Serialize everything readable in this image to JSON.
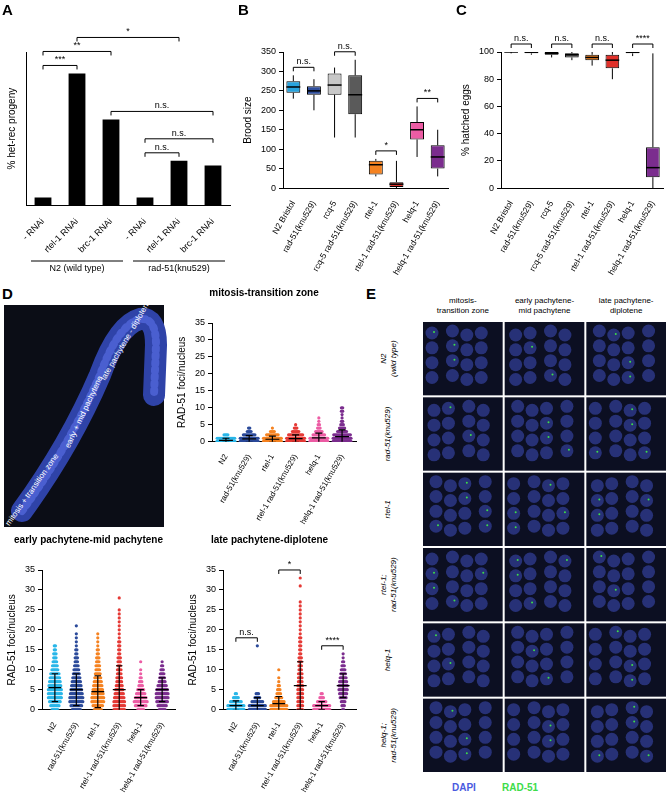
{
  "chart_data": [
    {
      "type": "bar",
      "title": "A",
      "categories": [
        "- RNAi",
        "rtel-1 RNAi",
        "brc-1 RNAi",
        "- RNAi",
        "rtel-1 RNAi",
        "brc-1 RNAi"
      ],
      "values": [
        0.05,
        0.86,
        0.56,
        0.05,
        0.29,
        0.26
      ],
      "color": "#000000",
      "ylabel": "% het-rec progeny",
      "ylim": [
        0,
        1
      ],
      "tick_labels": "x",
      "grid": false,
      "groups": [
        {
          "label": "N2 (wild type)",
          "from": 0,
          "to": 2
        },
        {
          "label": "rad-51(knu529)",
          "from": 3,
          "to": 5
        }
      ],
      "annotations": [
        {
          "label": "n.s.",
          "from": 3,
          "to": 4
        },
        {
          "label": "n.s.",
          "from": 3,
          "to": 5
        },
        {
          "label": "n.s.",
          "from": 2,
          "to": 5
        },
        {
          "label": "***",
          "from": 0,
          "to": 1
        },
        {
          "label": "**",
          "from": 0,
          "to": 2
        },
        {
          "label": "*",
          "from": 1,
          "to": 4
        }
      ]
    },
    {
      "type": "box",
      "title": "B",
      "categories": [
        "N2 Bristol",
        "rad-51(knu529)",
        "rcq-5",
        "rcq-5 rad-51(knu529)",
        "rtel-1",
        "rtel-1 rad-51(knu529)",
        "helq-1",
        "helq-1 rad-51(knu529)"
      ],
      "values": [
        [
          230,
          245,
          260,
          275,
          290
        ],
        [
          200,
          240,
          250,
          262,
          280
        ],
        [
          130,
          240,
          265,
          295,
          310
        ],
        [
          130,
          190,
          240,
          290,
          330
        ],
        [
          30,
          35,
          60,
          70,
          75
        ],
        [
          0,
          3,
          10,
          15,
          70
        ],
        [
          80,
          125,
          150,
          170,
          210
        ],
        [
          30,
          50,
          80,
          110,
          150
        ]
      ],
      "colors": [
        "#29a3dd",
        "#2e4d9b",
        "#c8c8c8",
        "#5a5a5a",
        "#f58220",
        "#e0302a",
        "#ec5ca4",
        "#7b2d8e"
      ],
      "ylabel": "Brood size",
      "ylim": [
        0,
        350
      ],
      "yticks": [
        0,
        50,
        100,
        150,
        200,
        250,
        300,
        350
      ],
      "grid": false,
      "annotations": [
        {
          "label": "n.s.",
          "from": 0,
          "to": 1
        },
        {
          "label": "n.s.",
          "from": 2,
          "to": 3
        },
        {
          "label": "*",
          "from": 4,
          "to": 5
        },
        {
          "label": "**",
          "from": 6,
          "to": 7
        }
      ]
    },
    {
      "type": "box",
      "title": "C",
      "categories": [
        "N2 Bristol",
        "rad-51(knu529)",
        "rcq-5",
        "rcq-5 rad-51(knu529)",
        "rtel-1",
        "rtel-1 rad-51(knu529)",
        "helq-1",
        "helq-1 rad-51(knu529)"
      ],
      "values": [
        [
          99,
          100,
          100,
          100,
          100
        ],
        [
          98,
          99,
          100,
          100,
          100
        ],
        [
          96,
          98,
          99,
          100,
          100
        ],
        [
          94,
          96,
          98,
          99,
          100
        ],
        [
          90,
          94,
          96,
          98,
          100
        ],
        [
          80,
          88,
          94,
          98,
          100
        ],
        [
          97,
          99,
          100,
          100,
          100
        ],
        [
          0,
          8,
          15,
          30,
          99
        ]
      ],
      "colors": [
        "#29a3dd",
        "#2e4d9b",
        "#c8c8c8",
        "#5a5a5a",
        "#f58220",
        "#e0302a",
        "#ec5ca4",
        "#7b2d8e"
      ],
      "ylabel": "% hatched eggs",
      "ylim": [
        0,
        100
      ],
      "yticks": [
        0,
        20,
        40,
        60,
        80,
        100
      ],
      "grid": false,
      "annotations": [
        {
          "label": "n.s.",
          "from": 0,
          "to": 1
        },
        {
          "label": "n.s.",
          "from": 2,
          "to": 3
        },
        {
          "label": "n.s.",
          "from": 4,
          "to": 5
        },
        {
          "label": "****",
          "from": 6,
          "to": 7
        }
      ]
    },
    {
      "type": "scatter",
      "title": "mitosis-transition zone",
      "categories": [
        "N2",
        "rad-51(knu529)",
        "rtel-1",
        "rtel-1 rad-51(knu529)",
        "helq-1",
        "helq-1 rad-51(knu529)"
      ],
      "colors": [
        "#29b6e8",
        "#2b4a9a",
        "#f58220",
        "#e53935",
        "#ec5ca4",
        "#7b2d8e"
      ],
      "counts": [
        [
          55,
          18,
          4
        ],
        [
          45,
          25,
          10,
          4,
          2
        ],
        [
          48,
          25,
          10,
          4,
          1
        ],
        [
          42,
          28,
          12,
          6,
          3,
          1
        ],
        [
          40,
          25,
          10,
          6,
          3,
          2,
          1,
          1
        ],
        [
          38,
          25,
          14,
          8,
          5,
          3,
          2,
          1,
          1,
          2,
          2
        ]
      ],
      "mean": [
        0.4,
        0.8,
        0.7,
        0.9,
        1.1,
        1.5
      ],
      "sd": [
        0.6,
        1.0,
        0.9,
        1.1,
        1.4,
        2.0
      ],
      "ylabel": "RAD-51 foci/nucleus",
      "ylim": [
        0,
        35
      ],
      "yticks": [
        0,
        5,
        10,
        15,
        20,
        25,
        30,
        35
      ],
      "grid": false
    },
    {
      "type": "scatter",
      "title": "early pachytene-mid pachytene",
      "categories": [
        "N2",
        "rad-51(knu529)",
        "rtel-1",
        "rtel-1 rad-51(knu529)",
        "helq-1",
        "helq-1 rad-51(knu529)"
      ],
      "colors": [
        "#29b6e8",
        "#2b4a9a",
        "#f58220",
        "#e53935",
        "#ec5ca4",
        "#7b2d8e"
      ],
      "counts": [
        [
          6,
          8,
          10,
          12,
          12,
          12,
          11,
          10,
          9,
          8,
          6,
          5,
          4,
          3,
          3,
          2,
          2
        ],
        [
          8,
          10,
          12,
          12,
          11,
          10,
          9,
          8,
          7,
          6,
          5,
          4,
          3,
          3,
          2,
          2,
          1,
          1,
          1,
          1,
          0,
          1
        ],
        [
          7,
          9,
          11,
          11,
          10,
          9,
          8,
          7,
          6,
          5,
          4,
          4,
          3,
          3,
          2,
          2,
          1,
          1,
          1,
          1
        ],
        [
          10,
          10,
          10,
          9,
          8,
          7,
          6,
          5,
          5,
          4,
          4,
          3,
          3,
          3,
          2,
          2,
          2,
          2,
          1,
          1,
          1,
          1,
          1,
          1,
          1,
          1,
          0,
          0,
          1
        ],
        [
          6,
          10,
          12,
          10,
          8,
          6,
          4,
          3,
          2,
          1,
          1,
          0,
          1
        ],
        [
          6,
          8,
          10,
          11,
          11,
          10,
          8,
          6,
          5,
          4,
          3,
          2,
          1
        ]
      ],
      "mean": [
        5.5,
        5,
        4.5,
        5,
        3,
        5
      ],
      "sd": [
        3.5,
        4,
        4,
        6,
        2,
        3
      ],
      "ylabel": "RAD-51 foci/nucleus",
      "ylim": [
        0,
        35
      ],
      "yticks": [
        0,
        5,
        10,
        15,
        20,
        25,
        30,
        35
      ],
      "grid": false
    },
    {
      "type": "scatter",
      "title": "late pachytene-diplotene",
      "categories": [
        "N2",
        "rad-51(knu529)",
        "rtel-1",
        "rtel-1 rad-51(knu529)",
        "helq-1",
        "helq-1 rad-51(knu529)"
      ],
      "colors": [
        "#29b6e8",
        "#2b4a9a",
        "#f58220",
        "#e53935",
        "#ec5ca4",
        "#7b2d8e"
      ],
      "counts": [
        [
          20,
          15,
          10,
          5,
          2
        ],
        [
          25,
          15,
          10,
          5,
          3,
          0,
          0,
          0,
          0,
          0,
          0,
          0,
          0,
          0,
          0,
          0,
          1
        ],
        [
          20,
          15,
          10,
          6,
          4,
          3,
          2,
          1,
          1,
          0,
          1
        ],
        [
          5,
          5,
          5,
          5,
          5,
          5,
          5,
          4,
          4,
          4,
          3,
          3,
          3,
          3,
          2,
          2,
          2,
          2,
          2,
          1,
          1,
          1,
          1,
          1,
          1,
          1,
          1,
          1,
          0,
          0,
          0,
          1,
          0,
          1
        ],
        [
          22,
          15,
          8,
          4,
          2
        ],
        [
          2,
          3,
          4,
          6,
          7,
          8,
          8,
          7,
          6,
          5,
          4,
          3,
          2,
          1,
          1
        ]
      ],
      "mean": [
        1,
        1,
        1.5,
        6,
        1,
        6
      ],
      "sd": [
        1.2,
        2,
        1.8,
        6,
        1,
        3
      ],
      "ylabel": "RAD-51 foci/nucleus",
      "ylim": [
        0,
        35
      ],
      "yticks": [
        0,
        5,
        10,
        15,
        20,
        25,
        30,
        35
      ],
      "grid": false,
      "annotations": [
        {
          "label": "n.s.",
          "from": 0,
          "to": 1
        },
        {
          "label": "*",
          "from": 2,
          "to": 3
        },
        {
          "label": "****",
          "from": 4,
          "to": 5
        }
      ]
    }
  ],
  "image_D": {
    "title": "D",
    "labels": [
      "mitosis + transition zone",
      "early + mid pachytene",
      "late pachytene - diplotene"
    ]
  },
  "panel_E": {
    "title": "E",
    "columns": [
      "mitosis-transition zone",
      "early pachytene-mid pachytene",
      "late pachytene-diplotene"
    ],
    "rows": [
      "N2 (wild type)",
      "rad-51(knu529)",
      "rtel-1",
      "rtel-1; rad-51(knu529)",
      "helq-1",
      "helq-1; rad-51(knu529)"
    ],
    "legend": [
      {
        "name": "DAPI",
        "color": "#4a5be0"
      },
      {
        "name": "RAD-51",
        "color": "#3ddc4a"
      }
    ]
  }
}
